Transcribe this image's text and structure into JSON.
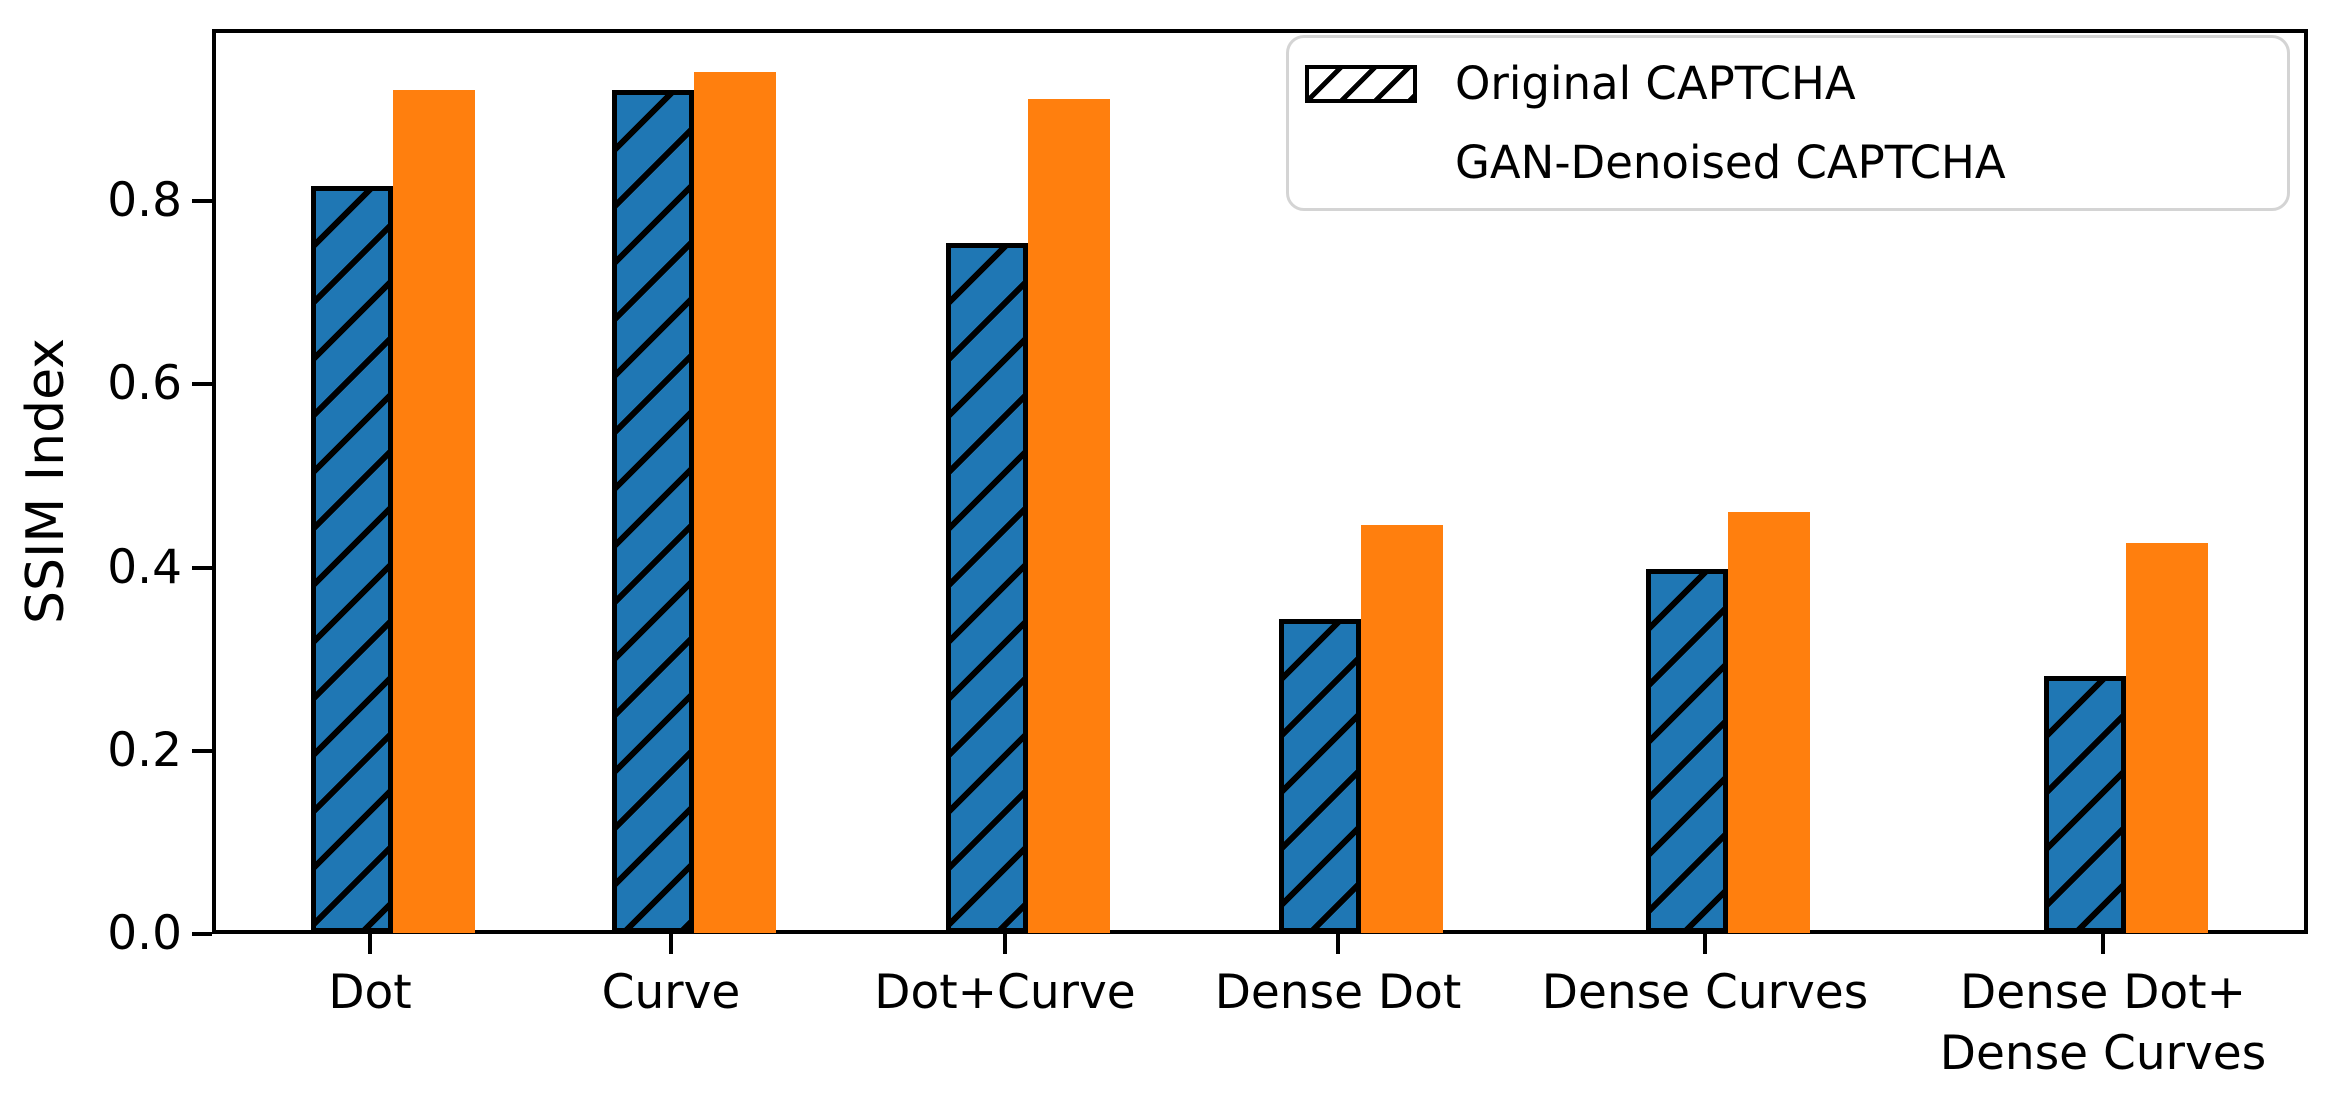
{
  "chart_data": {
    "type": "bar",
    "title": "",
    "xlabel": "",
    "ylabel": "SSIM Index",
    "categories": [
      "Dot",
      "Curve",
      "Dot+Curve",
      "Dense Dot",
      "Dense Curves",
      "Dense Dot+\nDense Curves"
    ],
    "series": [
      {
        "name": "Original CAPTCHA",
        "color": "#1f77b4",
        "hatch": "//",
        "edge_color": "#000000",
        "values": [
          0.815,
          0.92,
          0.753,
          0.343,
          0.397,
          0.281
        ]
      },
      {
        "name": "GAN-Denoised CAPTCHA",
        "color": "#ff7f0e",
        "hatch": "",
        "edge_color": "",
        "values": [
          0.92,
          0.94,
          0.91,
          0.445,
          0.46,
          0.426
        ]
      }
    ],
    "ylim": [
      0.0,
      0.988
    ],
    "yticks": [
      "0.0",
      "0.2",
      "0.4",
      "0.6",
      "0.8"
    ],
    "ytick_values": [
      0.0,
      0.2,
      0.4,
      0.6,
      0.8
    ],
    "legend_position": "upper right",
    "grid": false,
    "axis_color": "#000000",
    "background_color": "#ffffff"
  }
}
